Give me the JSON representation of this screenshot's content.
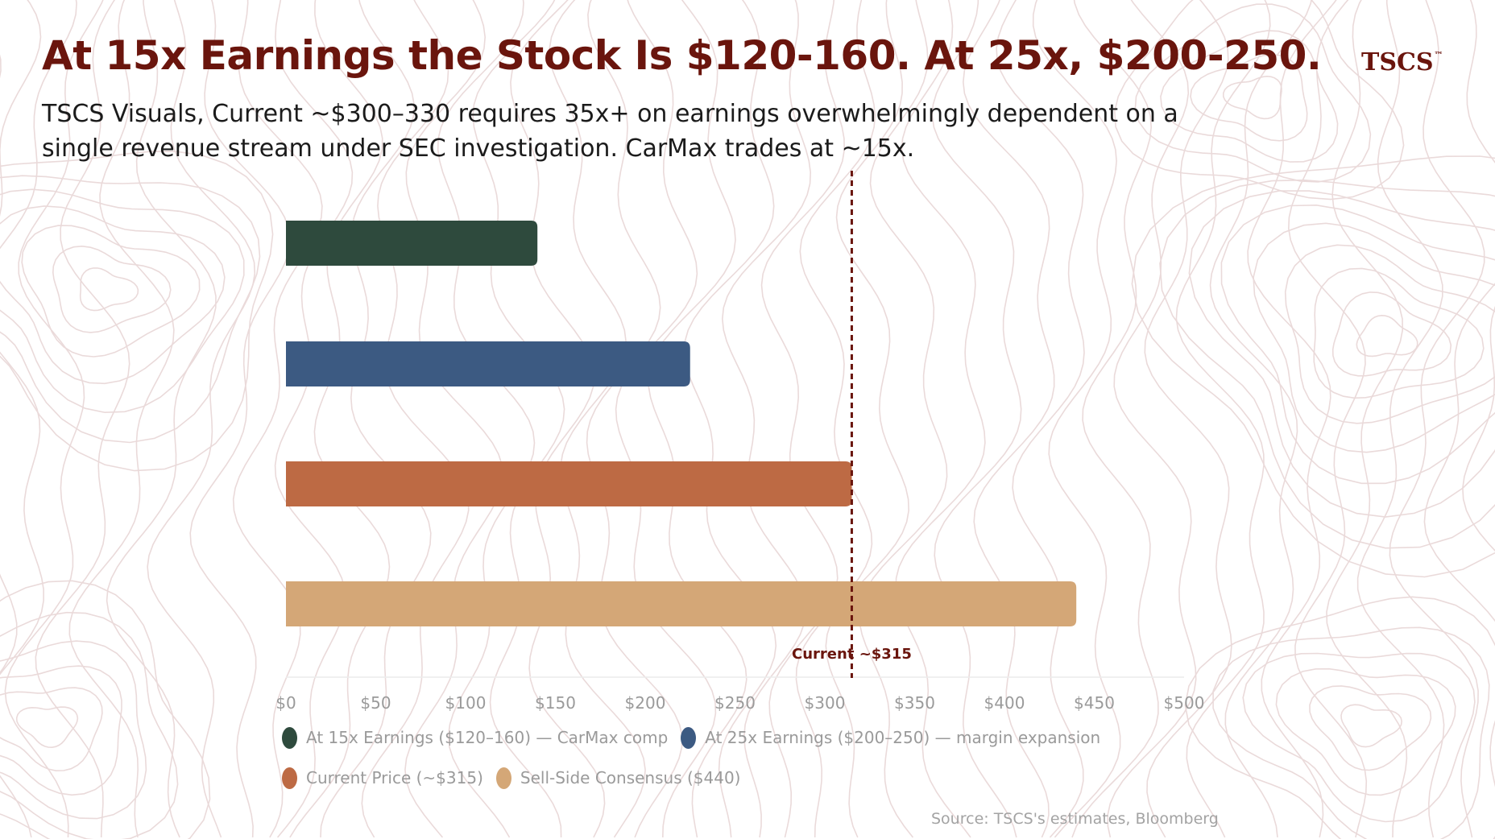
{
  "header": {
    "title": "At 15x Earnings the Stock Is $120-160. At 25x, $200-250.",
    "brand": "TSCS",
    "brand_mark": "™",
    "subtitle_line1": "TSCS Visuals, Current ~$300–330 requires 35x+ on earnings overwhelmingly dependent on a",
    "subtitle_line2": "single revenue stream under SEC investigation. CarMax trades at ~15x."
  },
  "colors": {
    "title": "#6a150d",
    "series": [
      "#2e4a3d",
      "#3c5a82",
      "#bd6a44",
      "#d4a777"
    ],
    "reference_line": "#6a150d",
    "contours": "#eadada"
  },
  "chart_data": {
    "type": "bar",
    "orientation": "horizontal",
    "title": "At 15x Earnings the Stock Is $120-160. At 25x, $200-250.",
    "xlabel": "",
    "ylabel": "",
    "xlim": [
      0,
      500
    ],
    "x_ticks": [
      0,
      50,
      100,
      150,
      200,
      250,
      300,
      350,
      400,
      450,
      500
    ],
    "x_tick_labels": [
      "$0",
      "$50",
      "$100",
      "$150",
      "$200",
      "$250",
      "$300",
      "$350",
      "$400",
      "$450",
      "$500"
    ],
    "grid": false,
    "series": [
      {
        "name": "At 15x Earnings ($120–160) — CarMax comp",
        "value": 140
      },
      {
        "name": "At 25x Earnings ($200–250) — margin expansion",
        "value": 225
      },
      {
        "name": "Current Price (~$315)",
        "value": 315
      },
      {
        "name": "Sell-Side Consensus ($440)",
        "value": 440
      }
    ],
    "reference_line": {
      "value": 315,
      "label": "Current ~$315"
    },
    "legend_position": "bottom"
  },
  "footer": {
    "source": "Source: TSCS's estimates, Bloomberg"
  }
}
